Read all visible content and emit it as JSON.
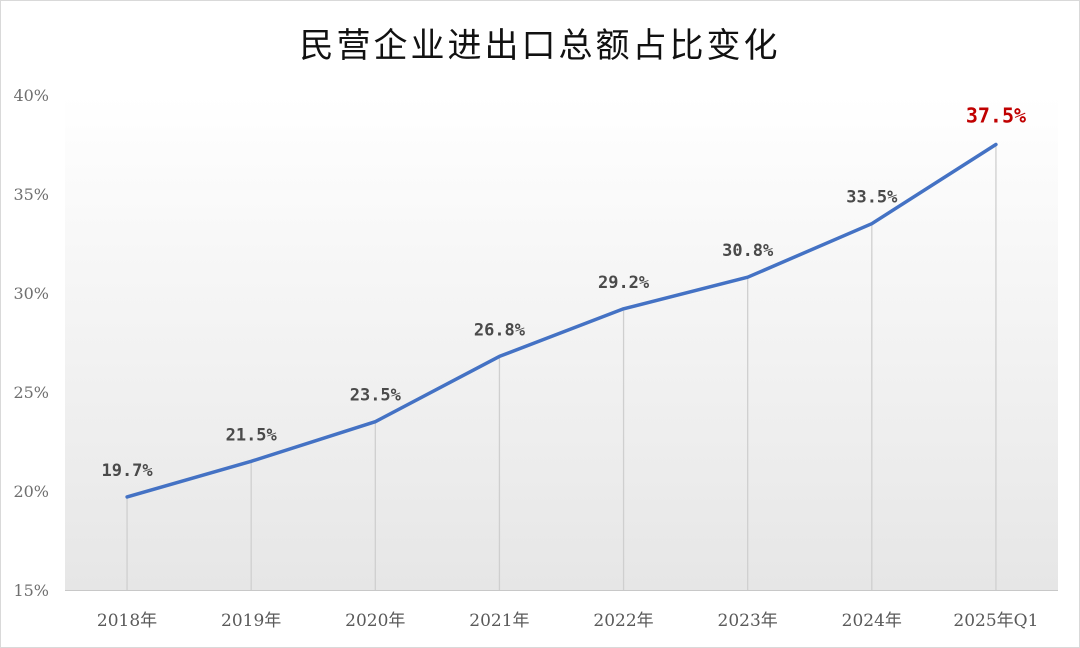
{
  "chart_data": {
    "type": "line",
    "title": "民营企业进出口总额占比变化",
    "categories": [
      "2018年",
      "2019年",
      "2020年",
      "2021年",
      "2022年",
      "2023年",
      "2024年",
      "2025年Q1"
    ],
    "series": [
      {
        "values": [
          19.7,
          21.5,
          23.5,
          26.8,
          29.2,
          30.8,
          33.5,
          37.5
        ],
        "labels": [
          "19.7%",
          "21.5%",
          "23.5%",
          "26.8%",
          "29.2%",
          "30.8%",
          "33.5%",
          "37.5%"
        ],
        "color": "#4472c4"
      }
    ],
    "ylim": [
      15,
      40
    ],
    "yticks": [
      {
        "value": 15,
        "label": "15%"
      },
      {
        "value": 20,
        "label": "20%"
      },
      {
        "value": 25,
        "label": "25%"
      },
      {
        "value": 30,
        "label": "30%"
      },
      {
        "value": 35,
        "label": "35%"
      },
      {
        "value": 40,
        "label": "40%"
      }
    ],
    "highlight": {
      "index": 7,
      "color": "#c00000"
    },
    "gradient_background": true,
    "grid": false,
    "legend": "none"
  }
}
